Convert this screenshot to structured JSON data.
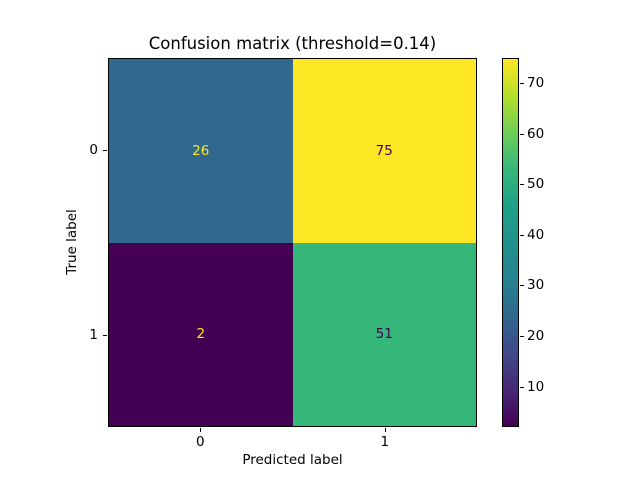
{
  "chart_data": {
    "type": "heatmap",
    "title": "Confusion matrix (threshold=0.14)",
    "xlabel": "Predicted label",
    "ylabel": "True label",
    "x_tick_labels": [
      "0",
      "1"
    ],
    "y_tick_labels": [
      "0",
      "1"
    ],
    "matrix": [
      [
        26,
        75
      ],
      [
        2,
        51
      ]
    ],
    "cells": [
      {
        "row": 0,
        "col": 0,
        "label": "26",
        "bg": "#31688e",
        "fg": "#fde725"
      },
      {
        "row": 0,
        "col": 1,
        "label": "75",
        "bg": "#fde725",
        "fg": "#440154"
      },
      {
        "row": 1,
        "col": 0,
        "label": "2",
        "bg": "#440154",
        "fg": "#fde725"
      },
      {
        "row": 1,
        "col": 1,
        "label": "51",
        "bg": "#35b779",
        "fg": "#440154"
      }
    ],
    "colormap": "viridis",
    "colorbar": {
      "vmin": 2,
      "vmax": 75,
      "ticks": [
        10,
        20,
        30,
        40,
        50,
        60,
        70
      ],
      "gradient_bottom_to_top": [
        "#440154",
        "#482878",
        "#3e4989",
        "#31688e",
        "#26828e",
        "#21918c",
        "#1fa188",
        "#35b779",
        "#6ece58",
        "#b5de2b",
        "#fde725"
      ]
    },
    "grid": false,
    "legend": false
  }
}
